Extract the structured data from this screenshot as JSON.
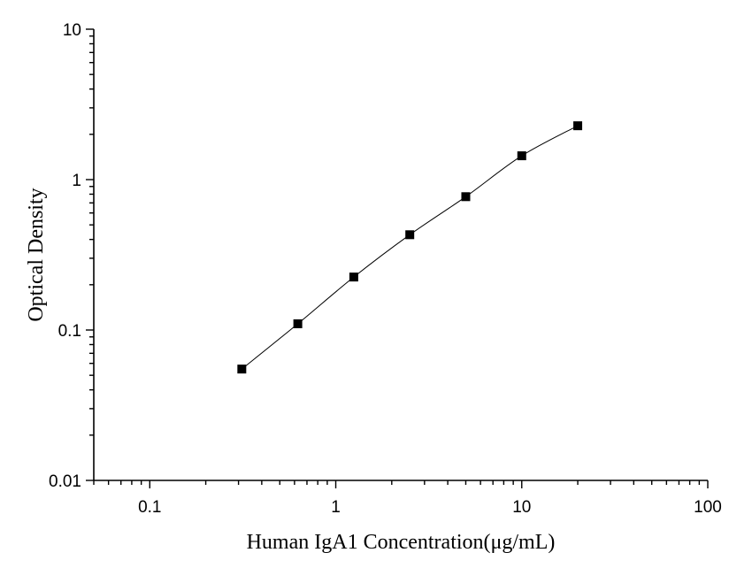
{
  "chart_data": {
    "type": "scatter",
    "title": "",
    "xlabel": "Human IgA1 Concentration(μg/mL)",
    "ylabel": "Optical Density",
    "xscale": "log",
    "yscale": "log",
    "xlim": [
      0.05,
      100
    ],
    "ylim": [
      0.01,
      10
    ],
    "grid": false,
    "x_ticks": [
      "0.1",
      "1",
      "10",
      "100"
    ],
    "y_ticks": [
      "0.01",
      "0.1",
      "1",
      "10"
    ],
    "series": [
      {
        "x": [
          0.3125,
          0.625,
          1.25,
          2.5,
          5,
          10,
          20
        ],
        "y": [
          0.055,
          0.11,
          0.225,
          0.43,
          0.77,
          1.44,
          2.28
        ],
        "marker": "square",
        "line": "fitted curve",
        "color": "#000000"
      }
    ]
  }
}
